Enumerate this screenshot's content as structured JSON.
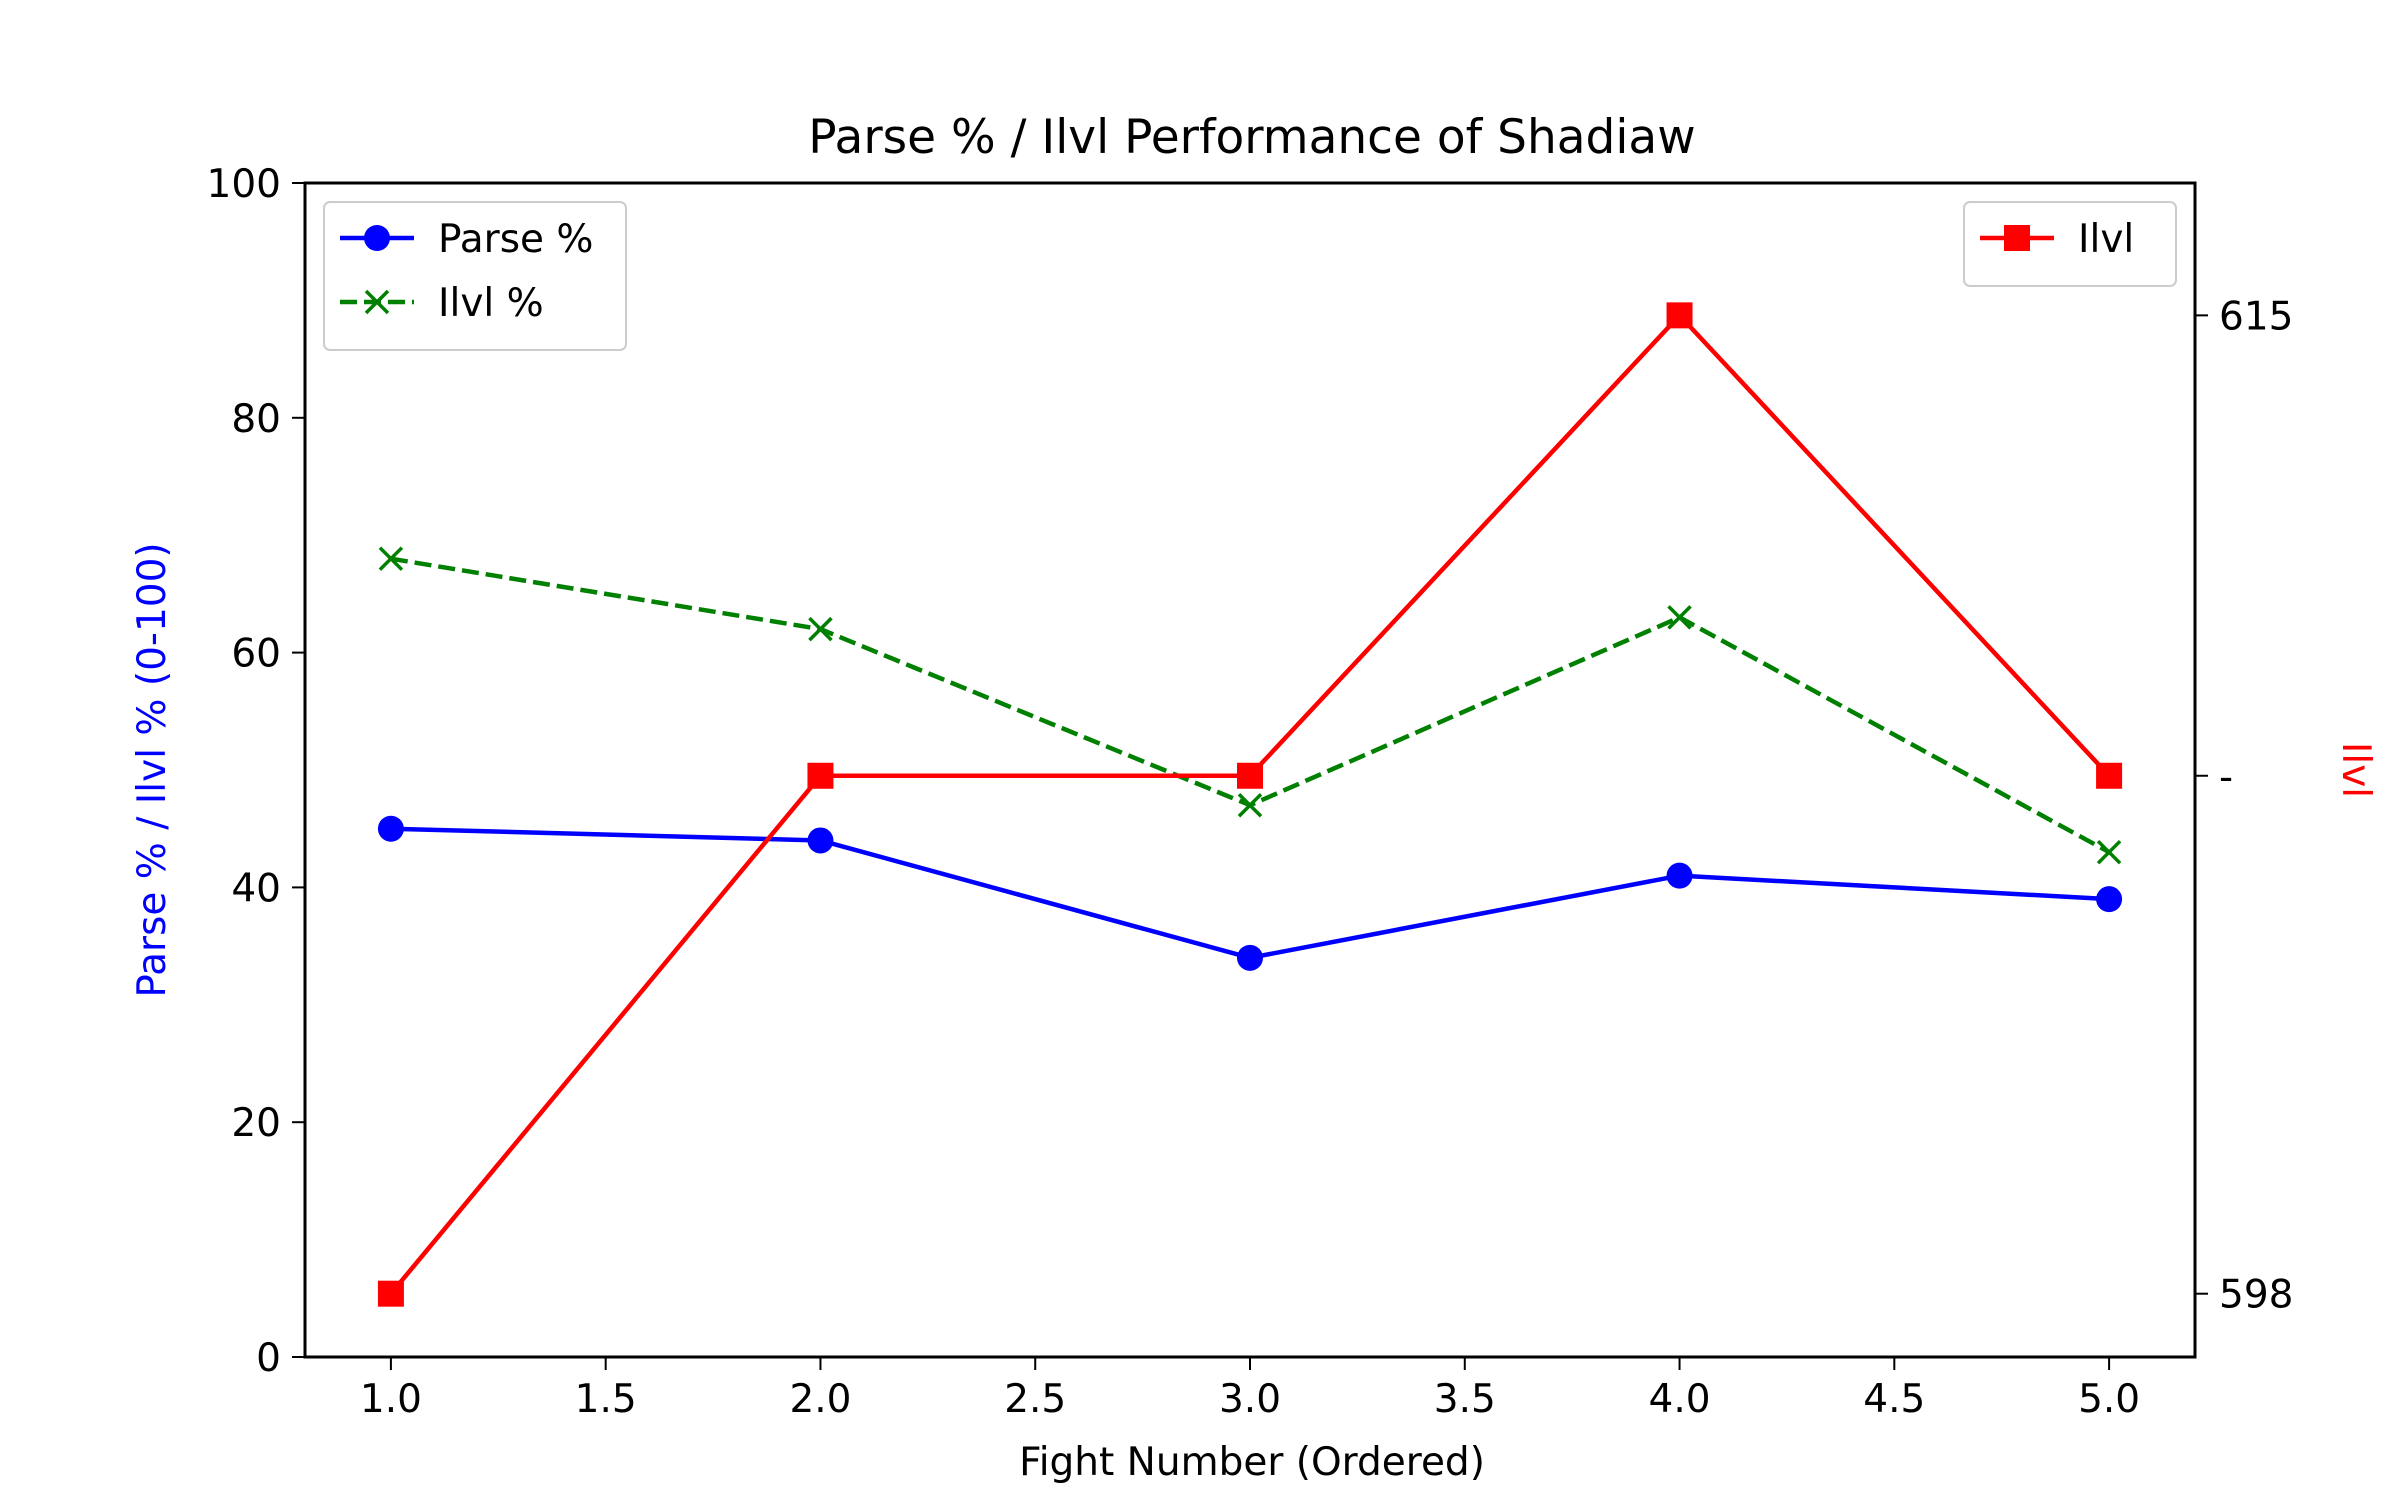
{
  "chart_data": {
    "type": "line",
    "title": "Parse % / Ilvl Performance of Shadiaw",
    "xlabel": "Fight Number (Ordered)",
    "ylabel_left": "Parse % / Ilvl % (0-100)",
    "ylabel_right": "Ilvl",
    "x": [
      1,
      2,
      3,
      4,
      5
    ],
    "xlim": [
      0.8,
      5.2
    ],
    "ylim_left": [
      0,
      100
    ],
    "ylim_right": [
      596.9,
      617.3
    ],
    "x_ticks": [
      1.0,
      1.5,
      2.0,
      2.5,
      3.0,
      3.5,
      4.0,
      4.5,
      5.0
    ],
    "x_tick_labels": [
      "1.0",
      "1.5",
      "2.0",
      "2.5",
      "3.0",
      "3.5",
      "4.0",
      "4.5",
      "5.0"
    ],
    "y_left_ticks": [
      0,
      20,
      40,
      60,
      80,
      100
    ],
    "y_left_tick_labels": [
      "0",
      "20",
      "40",
      "60",
      "80",
      "100"
    ],
    "y_right_ticks": [
      598,
      607,
      615
    ],
    "y_right_tick_labels": [
      "598",
      "-",
      "615"
    ],
    "grid": false,
    "series": [
      {
        "name": "Parse %",
        "axis": "left",
        "color": "#0000ff",
        "marker": "circle",
        "linestyle": "solid",
        "values": [
          45,
          44,
          34,
          41,
          39
        ]
      },
      {
        "name": "Ilvl %",
        "axis": "left",
        "color": "#008000",
        "marker": "x",
        "linestyle": "dashed",
        "values": [
          68,
          62,
          47,
          63,
          43
        ]
      },
      {
        "name": "Ilvl",
        "axis": "right",
        "color": "#ff0000",
        "marker": "square",
        "linestyle": "solid",
        "values": [
          598,
          607,
          607,
          615,
          607
        ]
      }
    ],
    "legends": [
      {
        "placement": "upper-left",
        "entries": [
          "Parse %",
          "Ilvl %"
        ]
      },
      {
        "placement": "upper-right",
        "entries": [
          "Ilvl"
        ]
      }
    ]
  }
}
